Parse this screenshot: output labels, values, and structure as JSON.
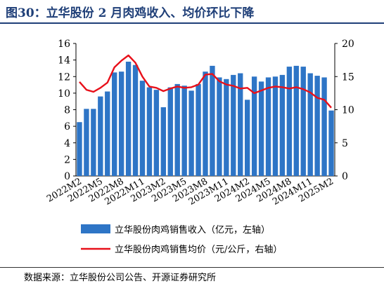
{
  "title": "图30：立华股份 2 月肉鸡收入、均价环比下降",
  "source": "数据来源：立华股份公司公告、开源证券研究所",
  "chart_data": {
    "type": "bar+line",
    "categories": [
      "2022M2",
      "2022M3",
      "2022M4",
      "2022M5",
      "2022M6",
      "2022M7",
      "2022M8",
      "2022M9",
      "2022M10",
      "2022M11",
      "2022M12",
      "2023M1",
      "2023M2",
      "2023M3",
      "2023M4",
      "2023M5",
      "2023M6",
      "2023M7",
      "2023M8",
      "2023M9",
      "2023M10",
      "2023M11",
      "2023M12",
      "2024M1",
      "2024M2",
      "2024M3",
      "2024M4",
      "2024M5",
      "2024M6",
      "2024M7",
      "2024M8",
      "2024M9",
      "2024M10",
      "2024M11",
      "2024M12",
      "2025M1",
      "2025M2"
    ],
    "tick_labels": [
      "2022M2",
      "2022M5",
      "2022M8",
      "2022M11",
      "2023M2",
      "2023M5",
      "2023M8",
      "2023M11",
      "2024M2",
      "2024M5",
      "2024M8",
      "2024M11",
      "2025M2"
    ],
    "series": [
      {
        "name": "立华股份肉鸡销售收入（亿元，左轴）",
        "type": "bar",
        "axis": "left",
        "color": "#2e75c6",
        "values": [
          6.5,
          8.1,
          8.1,
          9.6,
          10.2,
          12.5,
          12.6,
          13.8,
          13.4,
          11.5,
          10.7,
          10.4,
          8.3,
          10.7,
          11.1,
          10.9,
          10.3,
          11.1,
          12.6,
          13.3,
          11.9,
          11.7,
          12.2,
          12.4,
          9.2,
          12.0,
          11.4,
          11.9,
          12.0,
          12.2,
          13.2,
          13.3,
          13.2,
          12.4,
          12.1,
          11.9,
          7.9
        ]
      },
      {
        "name": "立华股份肉鸡销售均价（元/公斤，右轴）",
        "type": "line",
        "axis": "right",
        "color": "#e8101a",
        "values": [
          14.2,
          13.0,
          12.7,
          13.3,
          14.1,
          16.4,
          17.4,
          18.2,
          17.1,
          15.0,
          13.5,
          13.3,
          12.8,
          13.2,
          13.5,
          13.3,
          13.4,
          13.8,
          15.3,
          15.4,
          14.3,
          13.8,
          13.6,
          13.2,
          13.3,
          12.5,
          12.9,
          13.3,
          13.5,
          13.4,
          13.2,
          13.4,
          13.1,
          12.6,
          11.8,
          11.5,
          10.3
        ]
      }
    ],
    "y_left": {
      "min": 0,
      "max": 16,
      "ticks": [
        0,
        2,
        4,
        6,
        8,
        10,
        12,
        14,
        16
      ]
    },
    "y_right": {
      "min": 0,
      "max": 20,
      "ticks": [
        0,
        5,
        10,
        15,
        20
      ]
    },
    "grid": false,
    "legend_position": "bottom"
  }
}
